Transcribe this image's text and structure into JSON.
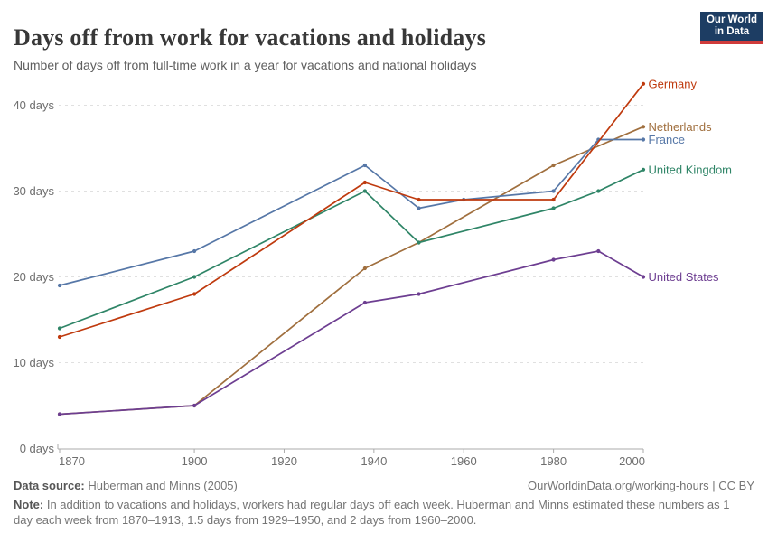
{
  "header": {
    "title": "Days off from work for vacations and holidays",
    "subtitle": "Number of days off from full-time work in a year for vacations and national holidays",
    "logo": {
      "line1": "Our World",
      "line2": "in Data",
      "bg": "#1d3d63",
      "accent": "#cf3b3b"
    }
  },
  "chart_data": {
    "type": "line",
    "title": "Days off from work for vacations and holidays",
    "xlabel": "",
    "ylabel": "",
    "xlim": [
      1870,
      2000
    ],
    "ylim": [
      0,
      43
    ],
    "x_ticks": [
      1870,
      1900,
      1920,
      1940,
      1960,
      1980,
      2000
    ],
    "y_ticks": [
      0,
      10,
      20,
      30,
      40
    ],
    "y_tick_suffix": " days",
    "grid": "horizontal-dashed",
    "grid_color": "#e0e0e0",
    "axis_color": "#ababab",
    "tick_label_color": "#6e6e6e",
    "legend_position": "right-of-line-ends",
    "series": [
      {
        "name": "Netherlands",
        "color": "#a06f3e",
        "points": [
          [
            1870,
            4
          ],
          [
            1900,
            5
          ],
          [
            1938,
            21
          ],
          [
            1950,
            24
          ],
          [
            1980,
            33
          ],
          [
            2000,
            37.5
          ]
        ]
      },
      {
        "name": "United States",
        "color": "#6d3e91",
        "points": [
          [
            1870,
            4
          ],
          [
            1900,
            5
          ],
          [
            1938,
            17
          ],
          [
            1950,
            18
          ],
          [
            1980,
            22
          ],
          [
            1990,
            23
          ],
          [
            2000,
            20
          ]
        ]
      },
      {
        "name": "United Kingdom",
        "color": "#2f8567",
        "points": [
          [
            1870,
            14
          ],
          [
            1900,
            20
          ],
          [
            1938,
            30
          ],
          [
            1950,
            24
          ],
          [
            1980,
            28
          ],
          [
            1990,
            30
          ],
          [
            2000,
            32.5
          ]
        ]
      },
      {
        "name": "France",
        "color": "#5677a7",
        "points": [
          [
            1870,
            19
          ],
          [
            1900,
            23
          ],
          [
            1938,
            33
          ],
          [
            1950,
            28
          ],
          [
            1960,
            29
          ],
          [
            1980,
            30
          ],
          [
            1990,
            36
          ],
          [
            2000,
            36
          ]
        ]
      },
      {
        "name": "Germany",
        "color": "#bf3a0e",
        "points": [
          [
            1870,
            13
          ],
          [
            1900,
            18
          ],
          [
            1938,
            31
          ],
          [
            1950,
            29
          ],
          [
            1980,
            29
          ],
          [
            2000,
            42.5
          ]
        ]
      }
    ]
  },
  "footer": {
    "source_label": "Data source:",
    "source_value": "Huberman and Minns (2005)",
    "credit": "OurWorldinData.org/working-hours | CC BY",
    "note_label": "Note:",
    "note_text": "In addition to vacations and holidays, workers had regular days off each week. Huberman and Minns estimated these numbers as 1 day each week from 1870–1913, 1.5 days from 1929–1950, and 2 days from 1960–2000."
  }
}
